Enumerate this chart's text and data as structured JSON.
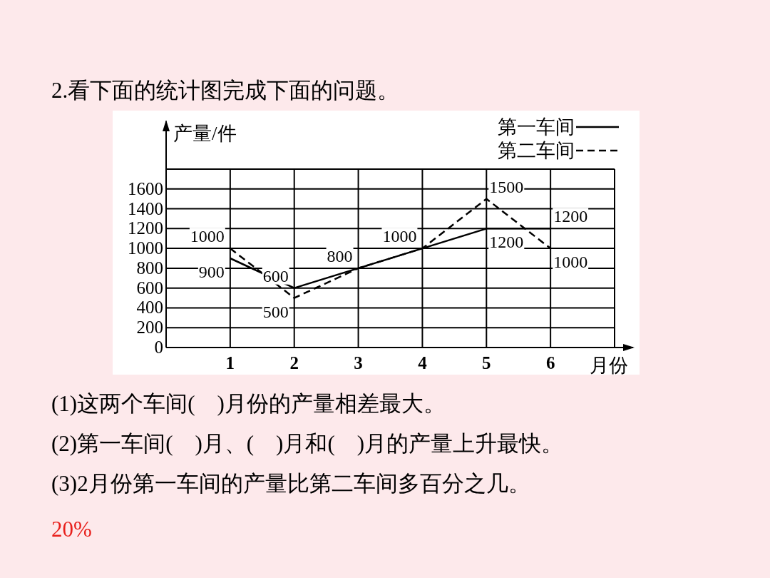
{
  "chart_data": {
    "type": "line",
    "title": "2.看下面的统计图完成下面的问题。",
    "ylabel": "产量/件",
    "xlabel": "月份",
    "x": [
      1,
      2,
      3,
      4,
      5,
      6
    ],
    "xlim": [
      0,
      7
    ],
    "xticks": [
      1,
      2,
      3,
      4,
      5,
      6
    ],
    "ylim": [
      0,
      1800
    ],
    "yticks": [
      0,
      200,
      400,
      600,
      800,
      1000,
      1200,
      1400,
      1600,
      {
        "value": 1800,
        "label": null
      }
    ],
    "grid": true,
    "legend": "top right",
    "marker": "none",
    "series": [
      {
        "name": "第一车间",
        "color": "#000000",
        "line_style": "solid",
        "values": [
          900,
          600,
          800,
          1000,
          1200,
          1200
        ],
        "value_labels": [
          "900",
          "600",
          "800",
          "1000",
          "1200",
          "1200"
        ]
      },
      {
        "name": "第二车间",
        "color": "#000000",
        "line_style": "dashed",
        "values": [
          1000,
          500,
          800,
          1000,
          1500,
          1000
        ],
        "value_labels": [
          "1000",
          "500",
          null,
          null,
          "1500",
          "1000"
        ]
      }
    ],
    "annotations": [
      "(1)这两个车间(　)月份的产量相差最大。",
      "(2)第一车间(　)月、(　)月和(　)月的产量上升最快。",
      "(3)2月份第一车间的产量比第二车间多百分之几。",
      "20%"
    ]
  }
}
